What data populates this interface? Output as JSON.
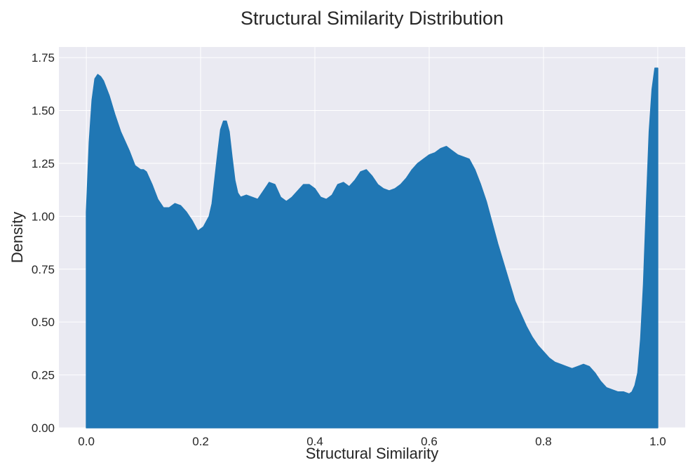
{
  "chart_data": {
    "type": "area",
    "title": "Structural Similarity Distribution",
    "xlabel": "Structural Similarity",
    "ylabel": "Density",
    "xlim": [
      -0.048,
      1.048
    ],
    "ylim": [
      0,
      1.8
    ],
    "xticks": [
      0.0,
      0.2,
      0.4,
      0.6,
      0.8,
      1.0
    ],
    "xtick_labels": [
      "0.0",
      "0.2",
      "0.4",
      "0.6",
      "0.8",
      "1.0"
    ],
    "yticks": [
      0.0,
      0.25,
      0.5,
      0.75,
      1.0,
      1.25,
      1.5,
      1.75
    ],
    "ytick_labels": [
      "0.00",
      "0.25",
      "0.50",
      "0.75",
      "1.00",
      "1.25",
      "1.50",
      "1.75"
    ],
    "grid": true,
    "colors": {
      "fill": "#2077b4",
      "plot_background": "#eaeaf2",
      "grid": "#ffffff",
      "text": "#262626"
    },
    "series": [
      {
        "x": [
          0.0,
          0.002,
          0.005,
          0.01,
          0.015,
          0.02,
          0.025,
          0.03,
          0.04,
          0.05,
          0.06,
          0.075,
          0.085,
          0.095,
          0.1,
          0.105,
          0.115,
          0.125,
          0.135,
          0.145,
          0.155,
          0.165,
          0.175,
          0.185,
          0.195,
          0.205,
          0.215,
          0.22,
          0.23,
          0.235,
          0.24,
          0.245,
          0.25,
          0.255,
          0.26,
          0.265,
          0.27,
          0.28,
          0.29,
          0.3,
          0.31,
          0.32,
          0.33,
          0.34,
          0.35,
          0.36,
          0.37,
          0.38,
          0.39,
          0.4,
          0.41,
          0.42,
          0.43,
          0.44,
          0.45,
          0.46,
          0.47,
          0.48,
          0.49,
          0.5,
          0.51,
          0.52,
          0.53,
          0.54,
          0.55,
          0.56,
          0.57,
          0.58,
          0.59,
          0.6,
          0.61,
          0.62,
          0.63,
          0.64,
          0.65,
          0.66,
          0.67,
          0.68,
          0.69,
          0.7,
          0.71,
          0.72,
          0.73,
          0.74,
          0.75,
          0.76,
          0.77,
          0.78,
          0.79,
          0.8,
          0.81,
          0.82,
          0.83,
          0.84,
          0.85,
          0.86,
          0.87,
          0.88,
          0.89,
          0.9,
          0.91,
          0.92,
          0.93,
          0.94,
          0.95,
          0.955,
          0.96,
          0.965,
          0.97,
          0.975,
          0.98,
          0.985,
          0.99,
          0.995,
          1.0
        ],
        "y": [
          1.02,
          1.15,
          1.35,
          1.55,
          1.65,
          1.67,
          1.66,
          1.64,
          1.57,
          1.48,
          1.4,
          1.31,
          1.24,
          1.22,
          1.22,
          1.21,
          1.15,
          1.08,
          1.04,
          1.04,
          1.06,
          1.05,
          1.02,
          0.98,
          0.93,
          0.95,
          1.0,
          1.06,
          1.3,
          1.41,
          1.45,
          1.45,
          1.4,
          1.28,
          1.17,
          1.11,
          1.09,
          1.1,
          1.09,
          1.08,
          1.12,
          1.16,
          1.15,
          1.09,
          1.07,
          1.09,
          1.12,
          1.15,
          1.15,
          1.13,
          1.09,
          1.08,
          1.1,
          1.15,
          1.16,
          1.14,
          1.17,
          1.21,
          1.22,
          1.19,
          1.15,
          1.13,
          1.12,
          1.13,
          1.15,
          1.18,
          1.22,
          1.25,
          1.27,
          1.29,
          1.3,
          1.32,
          1.33,
          1.31,
          1.29,
          1.28,
          1.27,
          1.22,
          1.15,
          1.07,
          0.97,
          0.87,
          0.78,
          0.69,
          0.6,
          0.54,
          0.48,
          0.43,
          0.39,
          0.36,
          0.33,
          0.31,
          0.3,
          0.29,
          0.28,
          0.29,
          0.3,
          0.29,
          0.26,
          0.22,
          0.19,
          0.18,
          0.17,
          0.17,
          0.16,
          0.17,
          0.2,
          0.26,
          0.42,
          0.68,
          1.05,
          1.4,
          1.6,
          1.7,
          1.7
        ]
      }
    ]
  }
}
